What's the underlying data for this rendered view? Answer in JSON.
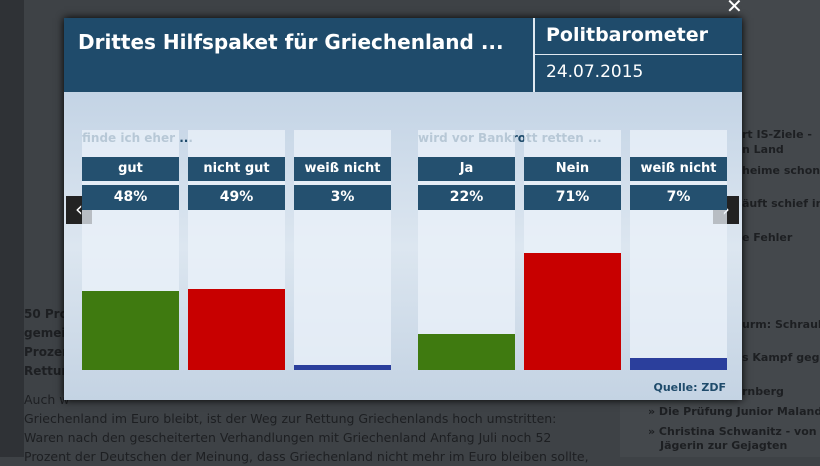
{
  "header": {
    "title": "Drittes Hilfspaket für Griechenland ...",
    "brand": "Politbarometer",
    "date": "24.07.2015"
  },
  "source": "Quelle: ZDF",
  "chart_data": [
    {
      "type": "bar",
      "title": "finde ich eher ...",
      "categories": [
        "gut",
        "nicht gut",
        "weiß nicht"
      ],
      "values": [
        48,
        49,
        3
      ],
      "value_labels": [
        "48%",
        "49%",
        "3%"
      ],
      "colors": [
        "#3f7a10",
        "#c80000",
        "#2b3f9c"
      ]
    },
    {
      "type": "bar",
      "title": "wird vor Bankrott retten ...",
      "categories": [
        "Ja",
        "Nein",
        "weiß nicht"
      ],
      "values": [
        22,
        71,
        7
      ],
      "value_labels": [
        "22%",
        "71%",
        "7%"
      ],
      "colors": [
        "#3f7a10",
        "#c80000",
        "#2b3f9c"
      ]
    }
  ],
  "background": {
    "left": [
      "50 Pro",
      "gemei",
      "Prozen",
      "Rettun"
    ],
    "article": [
      "Auch w",
      "Griechenland im Euro bleibt, ist der Weg zur Rettung Griechenlands hoch umstritten:",
      "Waren nach den gescheiterten Verhandlungen mit Griechenland Anfang Juli noch 52",
      "Prozent der Deutschen der Meinung, dass Griechenland nicht mehr im Euro bleiben sollte,"
    ],
    "sidebar": [
      "rt IS-Ziele -",
      "n Land",
      "heime schon",
      "äuft schief in",
      "e Fehler",
      "urm: Schraube,",
      "s Kampf gegen",
      "rnberg",
      "» Die Prüfung Junior Malanda",
      "» Christina Schwanitz - von der",
      "Jägerin zur Gejagten"
    ]
  }
}
